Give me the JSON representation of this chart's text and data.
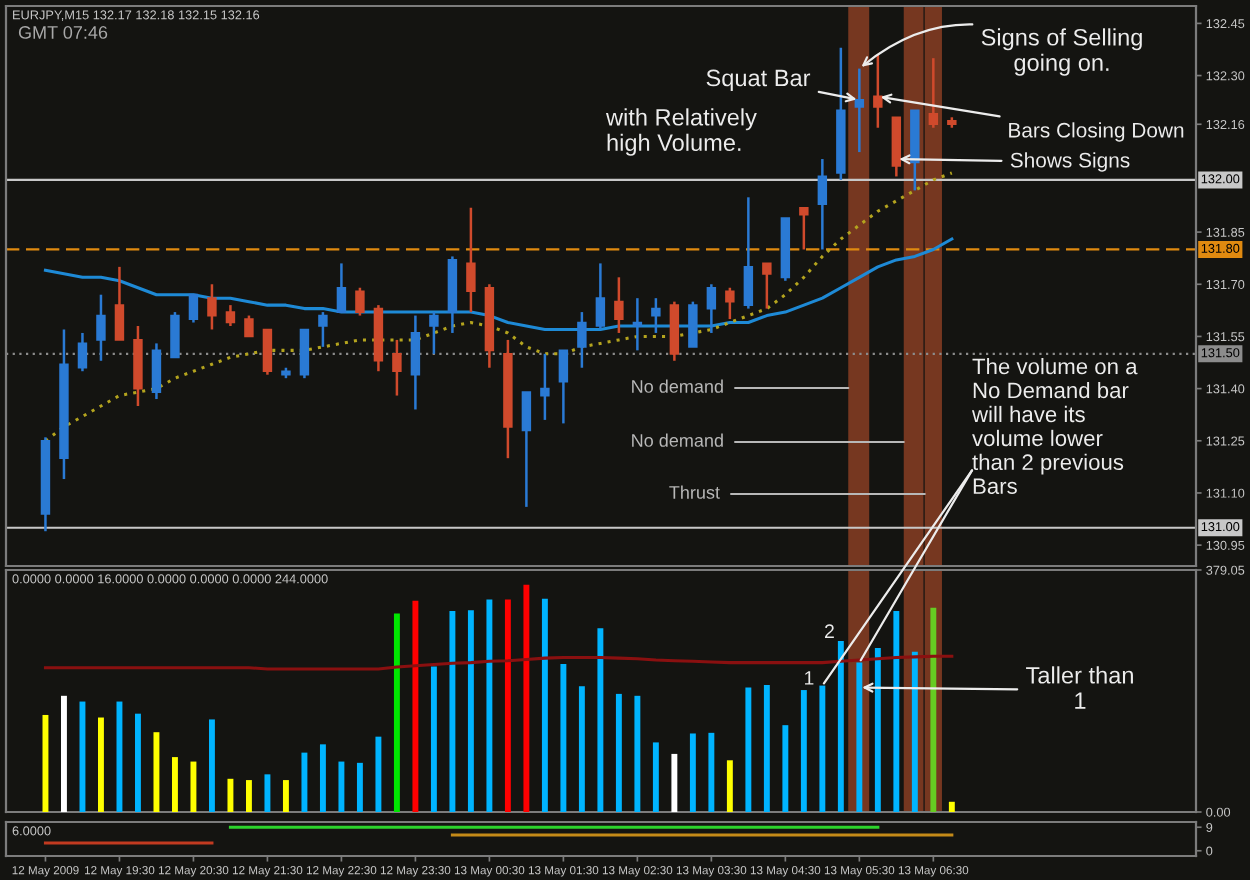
{
  "chart_data": [
    {
      "type": "candlestick",
      "title": "EURJPY,M15 132.17 132.18 132.15 132.16",
      "x": [
        "2009-05-12T18:30",
        "2009-05-12T18:45",
        "2009-05-12T19:00",
        "2009-05-12T19:15",
        "2009-05-12T19:30",
        "2009-05-12T19:45",
        "2009-05-12T20:00",
        "2009-05-12T20:15",
        "2009-05-12T20:30",
        "2009-05-12T20:45",
        "2009-05-12T21:00",
        "2009-05-12T21:15",
        "2009-05-12T21:30",
        "2009-05-12T21:45",
        "2009-05-12T22:00",
        "2009-05-12T22:15",
        "2009-05-12T22:30",
        "2009-05-12T22:45",
        "2009-05-12T23:00",
        "2009-05-12T23:15",
        "2009-05-12T23:30",
        "2009-05-12T23:45",
        "2009-05-13T00:00",
        "2009-05-13T00:15",
        "2009-05-13T00:30",
        "2009-05-13T00:45",
        "2009-05-13T01:00",
        "2009-05-13T01:15",
        "2009-05-13T01:30",
        "2009-05-13T01:45",
        "2009-05-13T02:00",
        "2009-05-13T02:15",
        "2009-05-13T02:30",
        "2009-05-13T02:45",
        "2009-05-13T03:00",
        "2009-05-13T03:15",
        "2009-05-13T03:30",
        "2009-05-13T03:45",
        "2009-05-13T04:00",
        "2009-05-13T04:15",
        "2009-05-13T04:30",
        "2009-05-13T04:45",
        "2009-05-13T05:00",
        "2009-05-13T05:15",
        "2009-05-13T05:30",
        "2009-05-13T05:45",
        "2009-05-13T06:00",
        "2009-05-13T06:15",
        "2009-05-13T06:30",
        "2009-05-13T06:45"
      ],
      "ohlc": [
        [
          131.04,
          131.26,
          130.99,
          131.25
        ],
        [
          131.2,
          131.57,
          131.14,
          131.47
        ],
        [
          131.46,
          131.56,
          131.45,
          131.53
        ],
        [
          131.54,
          131.67,
          131.48,
          131.61
        ],
        [
          131.64,
          131.75,
          131.54,
          131.54
        ],
        [
          131.54,
          131.58,
          131.35,
          131.4
        ],
        [
          131.39,
          131.53,
          131.37,
          131.51
        ],
        [
          131.49,
          131.62,
          131.49,
          131.61
        ],
        [
          131.6,
          131.67,
          131.59,
          131.67
        ],
        [
          131.66,
          131.7,
          131.57,
          131.61
        ],
        [
          131.62,
          131.64,
          131.58,
          131.59
        ],
        [
          131.6,
          131.61,
          131.55,
          131.55
        ],
        [
          131.57,
          131.57,
          131.44,
          131.45
        ],
        [
          131.44,
          131.46,
          131.43,
          131.45
        ],
        [
          131.44,
          131.57,
          131.43,
          131.57
        ],
        [
          131.58,
          131.62,
          131.52,
          131.61
        ],
        [
          131.62,
          131.76,
          131.62,
          131.69
        ],
        [
          131.68,
          131.69,
          131.61,
          131.62
        ],
        [
          131.63,
          131.64,
          131.45,
          131.48
        ],
        [
          131.5,
          131.54,
          131.38,
          131.45
        ],
        [
          131.44,
          131.61,
          131.34,
          131.56
        ],
        [
          131.58,
          131.62,
          131.5,
          131.61
        ],
        [
          131.62,
          131.78,
          131.56,
          131.77
        ],
        [
          131.76,
          131.92,
          131.62,
          131.68
        ],
        [
          131.69,
          131.7,
          131.46,
          131.51
        ],
        [
          131.5,
          131.54,
          131.2,
          131.29
        ],
        [
          131.28,
          131.39,
          131.06,
          131.39
        ],
        [
          131.38,
          131.5,
          131.31,
          131.4
        ],
        [
          131.42,
          131.51,
          131.3,
          131.51
        ],
        [
          131.52,
          131.62,
          131.46,
          131.59
        ],
        [
          131.58,
          131.76,
          131.57,
          131.66
        ],
        [
          131.65,
          131.72,
          131.56,
          131.6
        ],
        [
          131.58,
          131.66,
          131.51,
          131.59
        ],
        [
          131.61,
          131.66,
          131.56,
          131.63
        ],
        [
          131.64,
          131.65,
          131.48,
          131.5
        ],
        [
          131.52,
          131.65,
          131.52,
          131.64
        ],
        [
          131.63,
          131.7,
          131.56,
          131.69
        ],
        [
          131.68,
          131.69,
          131.6,
          131.65
        ],
        [
          131.64,
          131.95,
          131.63,
          131.75
        ],
        [
          131.76,
          131.76,
          131.63,
          131.73
        ],
        [
          131.72,
          131.89,
          131.71,
          131.89
        ],
        [
          131.92,
          131.92,
          131.8,
          131.9
        ],
        [
          131.93,
          132.06,
          131.8,
          132.01
        ],
        [
          132.02,
          132.38,
          132.0,
          132.2
        ],
        [
          132.21,
          132.32,
          132.08,
          132.23
        ],
        [
          132.24,
          132.36,
          132.15,
          132.21
        ],
        [
          132.18,
          132.18,
          132.01,
          132.04
        ],
        [
          132.05,
          132.2,
          131.97,
          132.2
        ],
        [
          132.19,
          132.35,
          132.15,
          132.16
        ],
        [
          132.17,
          132.18,
          132.15,
          132.16
        ]
      ],
      "colors": [
        "#2a7ad4",
        "#2a7ad4",
        "#2a7ad4",
        "#2a7ad4",
        "#d04a2c",
        "#d04a2c",
        "#2a7ad4",
        "#2a7ad4",
        "#2a7ad4",
        "#d04a2c",
        "#d04a2c",
        "#d04a2c",
        "#d04a2c",
        "#2a7ad4",
        "#2a7ad4",
        "#2a7ad4",
        "#2a7ad4",
        "#d04a2c",
        "#d04a2c",
        "#d04a2c",
        "#2a7ad4",
        "#2a7ad4",
        "#2a7ad4",
        "#d04a2c",
        "#d04a2c",
        "#d04a2c",
        "#2a7ad4",
        "#2a7ad4",
        "#2a7ad4",
        "#2a7ad4",
        "#2a7ad4",
        "#d04a2c",
        "#2a7ad4",
        "#2a7ad4",
        "#d04a2c",
        "#2a7ad4",
        "#2a7ad4",
        "#d04a2c",
        "#2a7ad4",
        "#d04a2c",
        "#2a7ad4",
        "#d04a2c",
        "#2a7ad4",
        "#2a7ad4",
        "#2a7ad4",
        "#d04a2c",
        "#d04a2c",
        "#2a7ad4",
        "#d04a2c",
        "#d04a2c"
      ],
      "series": [
        {
          "type": "line",
          "color": "#1e8ad6",
          "line_style": "solid",
          "values": [
            131.74,
            131.73,
            131.72,
            131.72,
            131.71,
            131.69,
            131.67,
            131.67,
            131.67,
            131.66,
            131.66,
            131.65,
            131.64,
            131.64,
            131.63,
            131.63,
            131.62,
            131.62,
            131.62,
            131.62,
            131.62,
            131.62,
            131.62,
            131.62,
            131.61,
            131.59,
            131.58,
            131.57,
            131.57,
            131.57,
            131.57,
            131.58,
            131.58,
            131.58,
            131.58,
            131.58,
            131.58,
            131.59,
            131.59,
            131.61,
            131.62,
            131.64,
            131.66,
            131.69,
            131.72,
            131.75,
            131.77,
            131.78,
            131.8,
            131.83
          ]
        },
        {
          "type": "line",
          "color": "#b4a41e",
          "line_style": "dotted",
          "values": [
            131.25,
            131.29,
            131.32,
            131.35,
            131.38,
            131.39,
            131.4,
            131.43,
            131.45,
            131.47,
            131.49,
            131.5,
            131.51,
            131.51,
            131.51,
            131.52,
            131.53,
            131.54,
            131.54,
            131.54,
            131.54,
            131.56,
            131.58,
            131.59,
            131.58,
            131.56,
            131.52,
            131.5,
            131.5,
            131.52,
            131.53,
            131.54,
            131.55,
            131.55,
            131.55,
            131.56,
            131.57,
            131.59,
            131.61,
            131.63,
            131.67,
            131.72,
            131.78,
            131.83,
            131.87,
            131.91,
            131.94,
            131.97,
            132.0,
            132.02
          ]
        }
      ],
      "xlim": [
        "2009-05-12T17:58",
        "2009-05-13T10:03"
      ],
      "ylim": [
        130.89,
        132.5
      ],
      "yticks": [
        132.45,
        {
          "value": 132.3,
          "label": "132.30"
        },
        132.16,
        131.85,
        {
          "value": 131.7,
          "label": "131.70"
        },
        131.55,
        {
          "value": 131.4,
          "label": "131.40"
        },
        131.25,
        {
          "value": 131.1,
          "label": "131.10"
        },
        130.95
      ],
      "ref_lines": [
        {
          "axis": "y",
          "value": 132.0,
          "label": "132.00",
          "color": "#c8c8c8",
          "line_style": "solid"
        },
        {
          "axis": "y",
          "value": 131.8,
          "label": "131.80",
          "color": "#e08a10",
          "line_style": "dashed"
        },
        {
          "axis": "y",
          "value": 131.5,
          "label": "131.50",
          "color": "#8c8c8c",
          "line_style": "dotted"
        },
        {
          "axis": "y",
          "value": 131.0,
          "label": "131.00",
          "color": "#c8c8c8",
          "line_style": "solid"
        }
      ],
      "bands": [
        {
          "axis": "x",
          "from": "2009-05-13T05:21",
          "to": "2009-05-13T05:38",
          "color": "#763720",
          "label": "No demand"
        },
        {
          "axis": "x",
          "from": "2009-05-13T06:06",
          "to": "2009-05-13T06:22",
          "color": "#763720",
          "label": "No demand"
        },
        {
          "axis": "x",
          "from": "2009-05-13T06:23",
          "to": "2009-05-13T06:37",
          "color": "#763720",
          "label": "Thrust"
        }
      ],
      "annotations": [
        "GMT 07:46",
        {
          "text": "Squat Bar",
          "x": "2009-05-13T05:30",
          "y": 132.23
        },
        "with Relatively\nhigh Volume.",
        {
          "text": "Signs of Selling\ngoing on.",
          "x": "2009-05-13T05:30",
          "y": 132.32
        },
        {
          "text": "Bars Closing Down",
          "x": "2009-05-13T05:45",
          "y": 132.24
        },
        {
          "text": "Shows Signs",
          "x": "2009-05-13T06:00",
          "y": 132.06
        }
      ],
      "tick_labels": "y"
    },
    {
      "type": "bar",
      "title": "0.0000 0.0000 16.0000 0.0000 0.0000 0.0000 244.0000",
      "x": [
        "2009-05-12T18:30",
        "2009-05-12T18:45",
        "2009-05-12T19:00",
        "2009-05-12T19:15",
        "2009-05-12T19:30",
        "2009-05-12T19:45",
        "2009-05-12T20:00",
        "2009-05-12T20:15",
        "2009-05-12T20:30",
        "2009-05-12T20:45",
        "2009-05-12T21:00",
        "2009-05-12T21:15",
        "2009-05-12T21:30",
        "2009-05-12T21:45",
        "2009-05-12T22:00",
        "2009-05-12T22:15",
        "2009-05-12T22:30",
        "2009-05-12T22:45",
        "2009-05-12T23:00",
        "2009-05-12T23:15",
        "2009-05-12T23:30",
        "2009-05-12T23:45",
        "2009-05-13T00:00",
        "2009-05-13T00:15",
        "2009-05-13T00:30",
        "2009-05-13T00:45",
        "2009-05-13T01:00",
        "2009-05-13T01:15",
        "2009-05-13T01:30",
        "2009-05-13T01:45",
        "2009-05-13T02:00",
        "2009-05-13T02:15",
        "2009-05-13T02:30",
        "2009-05-13T02:45",
        "2009-05-13T03:00",
        "2009-05-13T03:15",
        "2009-05-13T03:30",
        "2009-05-13T03:45",
        "2009-05-13T04:00",
        "2009-05-13T04:15",
        "2009-05-13T04:30",
        "2009-05-13T04:45",
        "2009-05-13T05:00",
        "2009-05-13T05:15",
        "2009-05-13T05:30",
        "2009-05-13T05:45",
        "2009-05-13T06:00",
        "2009-05-13T06:15",
        "2009-05-13T06:30",
        "2009-05-13T06:45"
      ],
      "series": [
        {
          "values": [
            152,
            182,
            173,
            148,
            173,
            154,
            125,
            86,
            79,
            145,
            52,
            50,
            59,
            50,
            93,
            106,
            79,
            77,
            118,
            311,
            331,
            228,
            315,
            316,
            333,
            333,
            356,
            334,
            232,
            197,
            288,
            185,
            182,
            109,
            91,
            123,
            124,
            81,
            195,
            199,
            136,
            191,
            198,
            268,
            234,
            257,
            315,
            251,
            320,
            16
          ],
          "colors": [
            "#ffff00",
            "#ffffff",
            "#00b4ff",
            "#ffff00",
            "#00b4ff",
            "#00b4ff",
            "#ffff00",
            "#ffff00",
            "#ffff00",
            "#00b4ff",
            "#ffff00",
            "#ffff00",
            "#00b4ff",
            "#ffff00",
            "#00b4ff",
            "#00b4ff",
            "#00b4ff",
            "#00b4ff",
            "#00b4ff",
            "#00e600",
            "#ff0000",
            "#00b4ff",
            "#00b4ff",
            "#00b4ff",
            "#00b4ff",
            "#ff0000",
            "#ff0000",
            "#00b4ff",
            "#00b4ff",
            "#00b4ff",
            "#00b4ff",
            "#00b4ff",
            "#00b4ff",
            "#00b4ff",
            "#ffffff",
            "#00b4ff",
            "#00b4ff",
            "#ffff00",
            "#00b4ff",
            "#00b4ff",
            "#00b4ff",
            "#00b4ff",
            "#00b4ff",
            "#00b4ff",
            "#00b4ff",
            "#00b4ff",
            "#00b4ff",
            "#00b4ff",
            "#66cc22",
            "#ffff00"
          ]
        },
        {
          "type": "line",
          "color": "#8a1010",
          "values": [
            226,
            226,
            226,
            226,
            226,
            226,
            226,
            226,
            226,
            226,
            226,
            226,
            224,
            224,
            224,
            224,
            224,
            224,
            224,
            227,
            229,
            231,
            233,
            234,
            236,
            237,
            239,
            241,
            242,
            242,
            242,
            241,
            240,
            238,
            237,
            236,
            235,
            234,
            234,
            234,
            234,
            234,
            234,
            236,
            238,
            240,
            242,
            243,
            244,
            244
          ]
        }
      ],
      "xlim": [
        "2009-05-12T17:58",
        "2009-05-13T10:03"
      ],
      "ylim": [
        0,
        379.05
      ],
      "yticks": [
        {
          "value": 0,
          "label": "0.00"
        },
        379.05
      ],
      "bands": [
        {
          "axis": "x",
          "from": "2009-05-13T05:21",
          "to": "2009-05-13T05:38",
          "color": "#763720"
        },
        {
          "axis": "x",
          "from": "2009-05-13T06:06",
          "to": "2009-05-13T06:22",
          "color": "#763720"
        },
        {
          "axis": "x",
          "from": "2009-05-13T06:23",
          "to": "2009-05-13T06:37",
          "color": "#763720"
        }
      ],
      "annotations": [
        {
          "text": "The volume on a\nNo Demand bar\nwill have its\nvolume lower\nthan 2 previous\nBars",
          "x": "2009-05-13T05:30",
          "y": 234
        },
        {
          "text": "1",
          "x": "2009-05-13T05:00",
          "y": 198
        },
        {
          "text": "2",
          "x": "2009-05-13T05:15",
          "y": 268
        },
        {
          "text": "Taller than\n1",
          "x": "2009-05-13T05:30",
          "y": 195
        }
      ],
      "tick_labels": "y"
    },
    {
      "type": "line",
      "title": "6.0000",
      "series": [
        {
          "color": "#c23a20",
          "x": [
            "2009-05-12T18:30",
            "2009-05-12T20:45"
          ],
          "values": [
            3,
            3
          ]
        },
        {
          "color": "#2cd42c",
          "x": [
            "2009-05-12T21:00",
            "2009-05-13T05:45"
          ],
          "values": [
            9,
            9
          ]
        },
        {
          "color": "#c48a18",
          "x": [
            "2009-05-13T00:00",
            "2009-05-13T06:45"
          ],
          "values": [
            6,
            6
          ]
        }
      ],
      "xlim": [
        "2009-05-12T17:58",
        "2009-05-13T10:03"
      ],
      "ylim": [
        -2,
        11
      ],
      "yticks": [
        0,
        9
      ],
      "xticks": [
        {
          "value": "2009-05-12T18:30",
          "label": "12 May 2009"
        },
        {
          "value": "2009-05-12T19:30",
          "label": "12 May 19:30"
        },
        {
          "value": "2009-05-12T20:30",
          "label": "12 May 20:30"
        },
        {
          "value": "2009-05-12T21:30",
          "label": "12 May 21:30"
        },
        {
          "value": "2009-05-12T22:30",
          "label": "12 May 22:30"
        },
        {
          "value": "2009-05-12T23:30",
          "label": "12 May 23:30"
        },
        {
          "value": "2009-05-13T00:30",
          "label": "13 May 00:30"
        },
        {
          "value": "2009-05-13T01:30",
          "label": "13 May 01:30"
        },
        {
          "value": "2009-05-13T02:30",
          "label": "13 May 02:30"
        },
        {
          "value": "2009-05-13T03:30",
          "label": "13 May 03:30"
        },
        {
          "value": "2009-05-13T04:30",
          "label": "13 May 04:30"
        },
        {
          "value": "2009-05-13T05:30",
          "label": "13 May 05:30"
        },
        {
          "value": "2009-05-13T06:30",
          "label": "13 May 06:30"
        }
      ]
    }
  ]
}
